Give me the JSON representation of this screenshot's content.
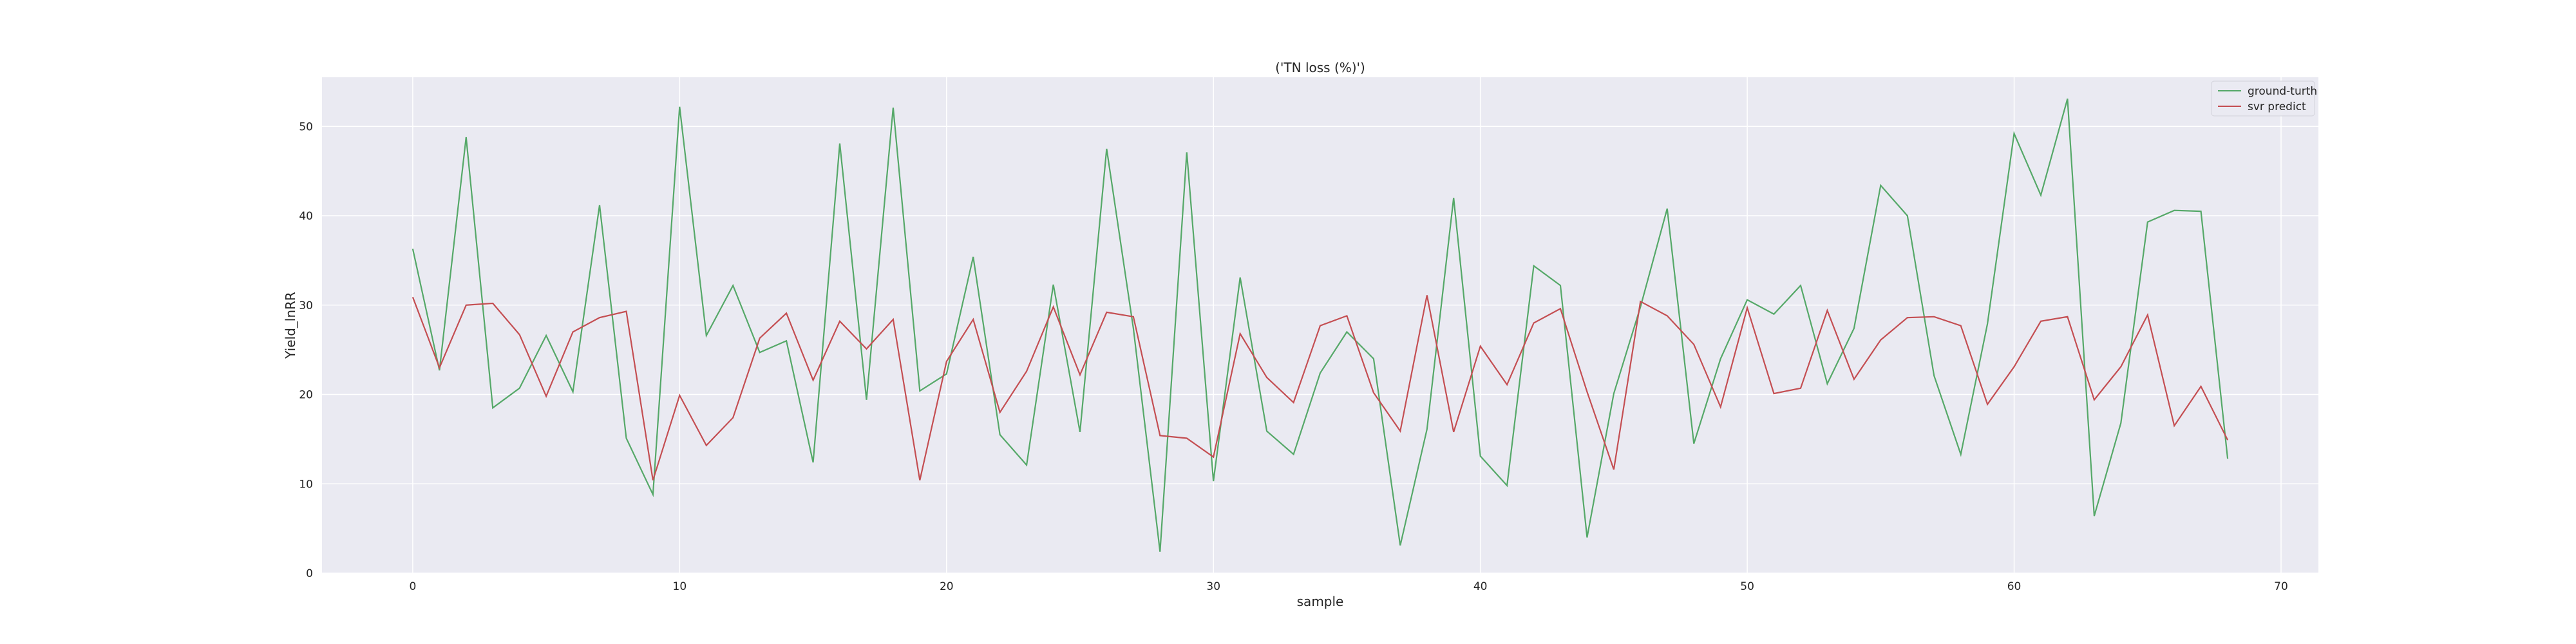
{
  "chart_data": {
    "type": "line",
    "title": "('TN loss (%)')",
    "xlabel": "sample",
    "ylabel": "Yield_lnRR",
    "xlim": [
      -3.4,
      71.4
    ],
    "ylim": [
      0,
      55.5
    ],
    "xticks": [
      0,
      10,
      20,
      30,
      40,
      50,
      60,
      70
    ],
    "yticks": [
      0,
      10,
      20,
      30,
      40,
      50
    ],
    "xtick_labels": [
      "0",
      "10",
      "20",
      "30",
      "40",
      "50",
      "60",
      "70"
    ],
    "ytick_labels": [
      "0",
      "10",
      "20",
      "30",
      "40",
      "50"
    ],
    "grid": true,
    "legend_position": "top-right",
    "background": "#eaeaf2",
    "series": [
      {
        "name": "ground-turth",
        "color": "#55a868",
        "x": [
          0,
          1,
          2,
          3,
          4,
          5,
          6,
          7,
          8,
          9,
          10,
          11,
          12,
          13,
          14,
          15,
          16,
          17,
          18,
          19,
          20,
          21,
          22,
          23,
          24,
          25,
          26,
          27,
          28,
          29,
          30,
          31,
          32,
          33,
          34,
          35,
          36,
          37,
          38,
          39,
          40,
          41,
          42,
          43,
          44,
          45,
          46,
          47,
          48,
          49,
          50,
          51,
          52,
          53,
          54,
          55,
          56,
          57,
          58,
          59,
          60,
          61,
          62,
          63,
          64,
          65,
          66,
          67,
          68
        ],
        "values": [
          36.3,
          22.7,
          48.8,
          18.5,
          20.7,
          26.6,
          20.3,
          41.2,
          15.1,
          8.8,
          52.2,
          26.6,
          32.2,
          24.7,
          26.0,
          12.4,
          48.1,
          19.4,
          52.1,
          20.4,
          22.3,
          35.4,
          15.5,
          12.1,
          32.3,
          15.8,
          47.5,
          27.4,
          2.4,
          47.1,
          10.3,
          33.1,
          15.9,
          13.3,
          22.4,
          27.0,
          24.0,
          3.1,
          16.1,
          42.0,
          13.1,
          9.8,
          34.4,
          32.2,
          4.0,
          20.1,
          29.8,
          40.8,
          14.5,
          24.0,
          30.6,
          29.0,
          32.2,
          21.2,
          27.4,
          43.4,
          40.0,
          22.1,
          13.3,
          27.9,
          49.2,
          42.3,
          53.1,
          6.4,
          16.8,
          39.3,
          40.6,
          40.5,
          12.8
        ]
      },
      {
        "name": "svr predict",
        "color": "#c44e52",
        "x": [
          0,
          1,
          2,
          3,
          4,
          5,
          6,
          7,
          8,
          9,
          10,
          11,
          12,
          13,
          14,
          15,
          16,
          17,
          18,
          19,
          20,
          21,
          22,
          23,
          24,
          25,
          26,
          27,
          28,
          29,
          30,
          31,
          32,
          33,
          34,
          35,
          36,
          37,
          38,
          39,
          40,
          41,
          42,
          43,
          44,
          45,
          46,
          47,
          48,
          49,
          50,
          51,
          52,
          53,
          54,
          55,
          56,
          57,
          58,
          59,
          60,
          61,
          62,
          63,
          64,
          65,
          66,
          67,
          68
        ],
        "values": [
          30.9,
          23.0,
          30.0,
          30.2,
          26.7,
          19.8,
          27.0,
          28.6,
          29.3,
          10.4,
          19.9,
          14.3,
          17.4,
          26.3,
          29.1,
          21.6,
          28.2,
          25.1,
          28.4,
          10.4,
          23.7,
          28.4,
          18.0,
          22.6,
          29.8,
          22.2,
          29.2,
          28.7,
          15.4,
          15.1,
          13.0,
          26.8,
          21.9,
          19.1,
          27.7,
          28.8,
          20.2,
          15.9,
          31.1,
          15.8,
          25.4,
          21.1,
          28.0,
          29.6,
          20.3,
          11.6,
          30.4,
          28.8,
          25.6,
          18.6,
          29.7,
          20.1,
          20.7,
          29.4,
          21.7,
          26.1,
          28.6,
          28.7,
          27.7,
          18.9,
          23.1,
          28.2,
          28.7,
          19.4,
          23.1,
          28.9,
          16.5,
          20.9,
          14.9
        ]
      }
    ]
  }
}
